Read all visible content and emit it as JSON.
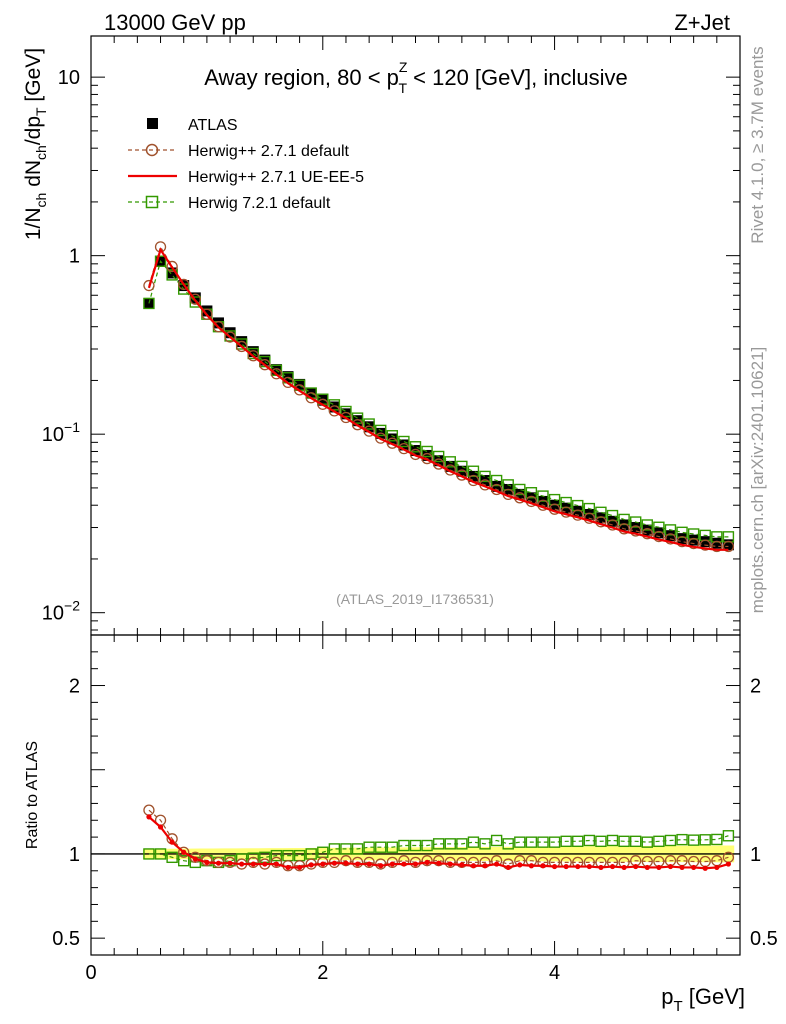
{
  "header": {
    "left": "13000 GeV pp",
    "right": "Z+Jet"
  },
  "side_labels": {
    "rivet": "Rivet 4.1.0, ≥ 3.7M events",
    "mcplots": "mcplots.cern.ch [arXiv:2401.10621]"
  },
  "chart_data": [
    {
      "type": "scatter",
      "panel": "main",
      "title_parts": {
        "pre": "Away region, 80 < p",
        "sup": "Z",
        "sub": "T",
        "post": " < 120 [GeV], inclusive"
      },
      "ylabel": "1/N_ch dN_ch/dp_T [GeV]",
      "yscale": "log",
      "ylim": [
        0.0075,
        17
      ],
      "xlim": [
        0,
        5.6
      ],
      "ytick_labels": [
        {
          "value": 10,
          "base": "10",
          "exp": ""
        },
        {
          "value": 1,
          "base": "1",
          "exp": ""
        },
        {
          "value": 0.1,
          "base": "10",
          "exp": "−1"
        },
        {
          "value": 0.01,
          "base": "10",
          "exp": "−2"
        }
      ],
      "watermark": "(ATLAS_2019_I1736531)",
      "x": [
        0.5,
        0.6,
        0.7,
        0.8,
        0.9,
        1.0,
        1.1,
        1.2,
        1.3,
        1.4,
        1.5,
        1.6,
        1.7,
        1.8,
        1.9,
        2.0,
        2.1,
        2.2,
        2.3,
        2.4,
        2.5,
        2.6,
        2.7,
        2.8,
        2.9,
        3.0,
        3.1,
        3.2,
        3.3,
        3.4,
        3.5,
        3.6,
        3.7,
        3.8,
        3.9,
        4.0,
        4.1,
        4.2,
        4.3,
        4.4,
        4.5,
        4.6,
        4.7,
        4.8,
        4.9,
        5.0,
        5.1,
        5.2,
        5.3,
        5.4,
        5.5
      ],
      "series": [
        {
          "name": "ATLAS",
          "color": "#000000",
          "marker": "filled-square",
          "values": [
            0.54,
            0.93,
            0.8,
            0.68,
            0.58,
            0.49,
            0.42,
            0.37,
            0.33,
            0.29,
            0.26,
            0.23,
            0.21,
            0.19,
            0.17,
            0.155,
            0.142,
            0.13,
            0.119,
            0.11,
            0.101,
            0.094,
            0.087,
            0.081,
            0.076,
            0.071,
            0.066,
            0.062,
            0.058,
            0.055,
            0.051,
            0.049,
            0.046,
            0.044,
            0.042,
            0.04,
            0.0385,
            0.037,
            0.0355,
            0.034,
            0.0325,
            0.031,
            0.03,
            0.029,
            0.028,
            0.027,
            0.026,
            0.0255,
            0.025,
            0.0245,
            0.024
          ]
        },
        {
          "name": "Herwig++ 2.7.1 default",
          "color": "#a0522d",
          "marker": "open-circle",
          "line": "dashed",
          "values": [
            0.68,
            1.12,
            0.87,
            0.69,
            0.57,
            0.47,
            0.4,
            0.35,
            0.31,
            0.275,
            0.245,
            0.218,
            0.195,
            0.177,
            0.16,
            0.147,
            0.135,
            0.124,
            0.113,
            0.104,
            0.095,
            0.089,
            0.083,
            0.077,
            0.073,
            0.068,
            0.063,
            0.059,
            0.055,
            0.052,
            0.049,
            0.046,
            0.044,
            0.042,
            0.04,
            0.038,
            0.0366,
            0.0352,
            0.0338,
            0.0323,
            0.031,
            0.0295,
            0.0287,
            0.0277,
            0.0267,
            0.0259,
            0.025,
            0.0244,
            0.0239,
            0.0235,
            0.0235
          ]
        },
        {
          "name": "Herwig++ 2.7.1 UE-EE-5",
          "color": "#ee0000",
          "marker": "dot",
          "line": "solid",
          "values": [
            0.66,
            1.08,
            0.86,
            0.69,
            0.56,
            0.465,
            0.397,
            0.35,
            0.31,
            0.273,
            0.244,
            0.216,
            0.193,
            0.175,
            0.159,
            0.146,
            0.134,
            0.123,
            0.112,
            0.103,
            0.094,
            0.088,
            0.082,
            0.076,
            0.072,
            0.067,
            0.062,
            0.058,
            0.054,
            0.051,
            0.048,
            0.045,
            0.043,
            0.041,
            0.039,
            0.037,
            0.0356,
            0.0342,
            0.0328,
            0.0313,
            0.03,
            0.0285,
            0.0277,
            0.0267,
            0.0257,
            0.0249,
            0.024,
            0.0234,
            0.0229,
            0.0225,
            0.0225
          ]
        },
        {
          "name": "Herwig 7.2.1 default",
          "color": "#339900",
          "marker": "open-square",
          "line": "dashed",
          "values": [
            0.54,
            0.93,
            0.78,
            0.65,
            0.55,
            0.47,
            0.4,
            0.355,
            0.32,
            0.283,
            0.255,
            0.228,
            0.207,
            0.188,
            0.17,
            0.157,
            0.146,
            0.134,
            0.123,
            0.114,
            0.105,
            0.098,
            0.091,
            0.085,
            0.08,
            0.075,
            0.07,
            0.066,
            0.062,
            0.058,
            0.055,
            0.052,
            0.049,
            0.047,
            0.045,
            0.043,
            0.0414,
            0.0398,
            0.0383,
            0.0365,
            0.035,
            0.0333,
            0.0322,
            0.031,
            0.0301,
            0.0291,
            0.0282,
            0.0276,
            0.0271,
            0.0266,
            0.0266
          ]
        }
      ]
    },
    {
      "type": "scatter",
      "panel": "ratio",
      "ylabel": "Ratio to ATLAS",
      "xlabel_parts": {
        "pre": "p",
        "sub": "T",
        "post": " [GeV]"
      },
      "ylim": [
        0.4,
        2.3
      ],
      "xlim": [
        0,
        5.6
      ],
      "xtick_labels": [
        "0",
        "2",
        "4"
      ],
      "xtick_values": [
        0,
        2,
        4
      ],
      "ytick_labels": [
        "0.5",
        "1",
        "2"
      ],
      "ytick_values": [
        0.5,
        1,
        2
      ],
      "band": {
        "color": "#ffff66",
        "values_lo": [
          0.97,
          0.95
        ],
        "values_hi": [
          1.03,
          1.05
        ]
      },
      "series": [
        {
          "name": "Herwig++ 2.7.1 default",
          "color": "#a0522d",
          "values": [
            1.26,
            1.2,
            1.09,
            1.01,
            0.98,
            0.96,
            0.95,
            0.95,
            0.94,
            0.95,
            0.94,
            0.95,
            0.93,
            0.93,
            0.94,
            0.95,
            0.95,
            0.96,
            0.95,
            0.95,
            0.94,
            0.95,
            0.96,
            0.95,
            0.96,
            0.96,
            0.95,
            0.95,
            0.95,
            0.95,
            0.96,
            0.94,
            0.96,
            0.96,
            0.95,
            0.95,
            0.95,
            0.95,
            0.95,
            0.95,
            0.95,
            0.95,
            0.96,
            0.955,
            0.955,
            0.96,
            0.96,
            0.955,
            0.955,
            0.96,
            0.98
          ]
        },
        {
          "name": "Herwig++ 2.7.1 UE-EE-5",
          "color": "#ee0000",
          "values": [
            1.22,
            1.16,
            1.07,
            1.01,
            0.97,
            0.95,
            0.945,
            0.945,
            0.94,
            0.94,
            0.94,
            0.94,
            0.92,
            0.92,
            0.935,
            0.94,
            0.945,
            0.945,
            0.94,
            0.94,
            0.93,
            0.94,
            0.94,
            0.94,
            0.95,
            0.945,
            0.94,
            0.935,
            0.93,
            0.93,
            0.94,
            0.92,
            0.935,
            0.93,
            0.93,
            0.925,
            0.925,
            0.925,
            0.925,
            0.92,
            0.925,
            0.92,
            0.925,
            0.92,
            0.92,
            0.925,
            0.92,
            0.92,
            0.915,
            0.92,
            0.94
          ]
        },
        {
          "name": "Herwig 7.2.1 default",
          "color": "#339900",
          "values": [
            1.0,
            1.0,
            0.98,
            0.96,
            0.95,
            0.96,
            0.95,
            0.96,
            0.97,
            0.975,
            0.98,
            0.99,
            0.99,
            0.99,
            1.0,
            1.01,
            1.03,
            1.03,
            1.03,
            1.04,
            1.04,
            1.04,
            1.05,
            1.05,
            1.05,
            1.06,
            1.06,
            1.06,
            1.07,
            1.06,
            1.08,
            1.06,
            1.07,
            1.07,
            1.07,
            1.07,
            1.075,
            1.075,
            1.08,
            1.075,
            1.08,
            1.075,
            1.075,
            1.07,
            1.075,
            1.08,
            1.085,
            1.082,
            1.084,
            1.086,
            1.108
          ]
        }
      ]
    }
  ]
}
